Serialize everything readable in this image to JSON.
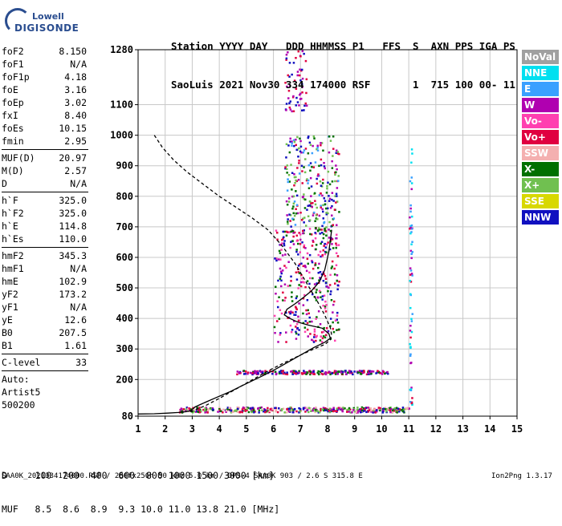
{
  "logo": {
    "line1": "Lowell",
    "line2": "DIGISONDE"
  },
  "header": {
    "row1": "Station YYYY DAY   DDD HHMMSS P1   FFS  S  AXN PPS IGA PS",
    "row2": "SaoLuis 2021 Nov30 334 174000 RSF       1  715 100 00- 11"
  },
  "params": [
    {
      "name": "foF2",
      "value": "8.150"
    },
    {
      "name": "foF1",
      "value": "N/A"
    },
    {
      "name": "foF1p",
      "value": "4.18"
    },
    {
      "name": "foE",
      "value": "3.16"
    },
    {
      "name": "foEp",
      "value": "3.02"
    },
    {
      "name": "fxI",
      "value": "8.40"
    },
    {
      "name": "foEs",
      "value": "10.15"
    },
    {
      "name": "fmin",
      "value": "2.95"
    },
    {
      "sep": true
    },
    {
      "name": "MUF(D)",
      "value": "20.97"
    },
    {
      "name": "M(D)",
      "value": "2.57"
    },
    {
      "name": "D",
      "value": "N/A"
    },
    {
      "sep": true
    },
    {
      "name": "h`F",
      "value": "325.0"
    },
    {
      "name": "h`F2",
      "value": "325.0"
    },
    {
      "name": "h`E",
      "value": "114.8"
    },
    {
      "name": "h`Es",
      "value": "110.0"
    },
    {
      "sep": true
    },
    {
      "name": "hmF2",
      "value": "345.3"
    },
    {
      "name": "hmF1",
      "value": "N/A"
    },
    {
      "name": "hmE",
      "value": "102.9"
    },
    {
      "name": "yF2",
      "value": "173.2"
    },
    {
      "name": "yF1",
      "value": "N/A"
    },
    {
      "name": "yE",
      "value": "12.6"
    },
    {
      "name": "B0",
      "value": "207.5"
    },
    {
      "name": "B1",
      "value": "1.61"
    },
    {
      "sep": true
    },
    {
      "name": "C-level",
      "value": "33"
    },
    {
      "sep": true
    },
    {
      "name": "Auto:",
      "value": ""
    },
    {
      "name": "Artist5",
      "value": ""
    },
    {
      "name": "500200",
      "value": ""
    }
  ],
  "legend": [
    {
      "label": "NoVal",
      "color": "#a0a0a0"
    },
    {
      "label": "NNE",
      "color": "#00e0f0"
    },
    {
      "label": "E",
      "color": "#3aa0ff"
    },
    {
      "label": "W",
      "color": "#b000b0"
    },
    {
      "label": "Vo-",
      "color": "#ff40b0"
    },
    {
      "label": "Vo+",
      "color": "#e00040"
    },
    {
      "label": "SSW",
      "color": "#f4b0b0"
    },
    {
      "label": "X-",
      "color": "#007000"
    },
    {
      "label": "X+",
      "color": "#70c050"
    },
    {
      "label": "SSE",
      "color": "#d8d800"
    },
    {
      "label": "NNW",
      "color": "#1010c0"
    }
  ],
  "footer": {
    "row1": "D     100  200  400  600  800 1000 1500 3000 [km]",
    "row2": "MUF   8.5  8.6  8.9  9.3 10.0 11.0 13.8 21.0 [MHz]",
    "fileinfo": "SAA0K_2021334174000.RSF / 280fx256h 50 kHz 5.0 km / DPS-4 SAA0K 903 / 2.6 S 315.8 E",
    "version": "Ion2Png 1.3.17"
  },
  "chart_data": {
    "type": "scatter",
    "title": "",
    "xlabel": "",
    "ylabel": "",
    "xlim": [
      1,
      15
    ],
    "ylim": [
      80,
      1280
    ],
    "xticks": [
      1,
      2,
      3,
      4,
      5,
      6,
      7,
      8,
      9,
      10,
      11,
      12,
      13,
      14,
      15
    ],
    "yticks": [
      80,
      200,
      300,
      400,
      500,
      600,
      700,
      800,
      900,
      1000,
      1100,
      1280
    ],
    "grid": true,
    "series": [
      {
        "name": "virtual height profile",
        "style": "solid",
        "color": "#000000",
        "x": [
          1.0,
          1.6,
          2.1,
          2.5,
          2.8,
          2.95,
          3.0,
          3.1,
          3.3,
          3.6,
          4.0,
          4.4,
          4.8,
          5.2,
          5.6,
          6.0,
          6.5,
          7.0,
          7.5,
          7.9,
          8.1,
          8.05,
          7.8,
          7.3,
          6.9,
          6.6,
          6.4,
          6.5,
          6.8,
          7.1,
          7.4,
          7.7,
          7.9,
          8.05,
          8.15
        ],
        "y": [
          87,
          88,
          90,
          92,
          95,
          98,
          102,
          110,
          118,
          130,
          145,
          160,
          178,
          195,
          212,
          230,
          255,
          280,
          305,
          322,
          335,
          350,
          368,
          378,
          388,
          400,
          412,
          430,
          448,
          468,
          490,
          520,
          560,
          620,
          690
        ]
      },
      {
        "name": "true height profile",
        "style": "dashed",
        "color": "#000000",
        "x": [
          1.6,
          1.9,
          2.3,
          2.8,
          3.4,
          4.0,
          4.6,
          5.2,
          5.8,
          6.3,
          6.8,
          7.2,
          7.6,
          7.9,
          8.1,
          8.15,
          8.1,
          7.9,
          7.5,
          7.0,
          6.4,
          5.8,
          5.2,
          4.6,
          4.0,
          3.5,
          3.1,
          2.95,
          3.0
        ],
        "y": [
          1000,
          960,
          920,
          880,
          840,
          800,
          765,
          730,
          690,
          640,
          580,
          520,
          460,
          410,
          370,
          345,
          330,
          315,
          300,
          280,
          255,
          228,
          198,
          168,
          138,
          115,
          100,
          95,
          88
        ]
      }
    ],
    "point_clusters": [
      {
        "name": "E layer trace",
        "x": [
          2.5,
          11.0
        ],
        "y": [
          95,
          112
        ],
        "colors": [
          "#e00040",
          "#b000b0",
          "#007000",
          "#1010c0",
          "#f4b0b0",
          "#70c050"
        ],
        "count": 420
      },
      {
        "name": "Es layer trace",
        "x": [
          4.6,
          10.2
        ],
        "y": [
          220,
          232
        ],
        "colors": [
          "#e00040",
          "#b000b0",
          "#007000",
          "#1010c0"
        ],
        "count": 220
      },
      {
        "name": "F trace",
        "x": [
          6.0,
          8.4
        ],
        "y": [
          325,
          700
        ],
        "colors": [
          "#e00040",
          "#b000b0",
          "#007000",
          "#ff40b0",
          "#1010c0"
        ],
        "count": 360
      },
      {
        "name": "F multiple",
        "x": [
          6.4,
          8.4
        ],
        "y": [
          690,
          1000
        ],
        "colors": [
          "#1010c0",
          "#007000",
          "#3aa0ff",
          "#b000b0",
          "#e00040",
          "#70c050"
        ],
        "count": 260
      },
      {
        "name": "upper trace",
        "x": [
          6.4,
          7.2
        ],
        "y": [
          1080,
          1280
        ],
        "colors": [
          "#b000b0",
          "#1010c0",
          "#e00040"
        ],
        "count": 60
      },
      {
        "name": "11 MHz column",
        "x": [
          11.0,
          11.1
        ],
        "y": [
          100,
          1020
        ],
        "colors": [
          "#00e0f0",
          "#e00040",
          "#b000b0",
          "#3aa0ff"
        ],
        "count": 60
      }
    ]
  }
}
